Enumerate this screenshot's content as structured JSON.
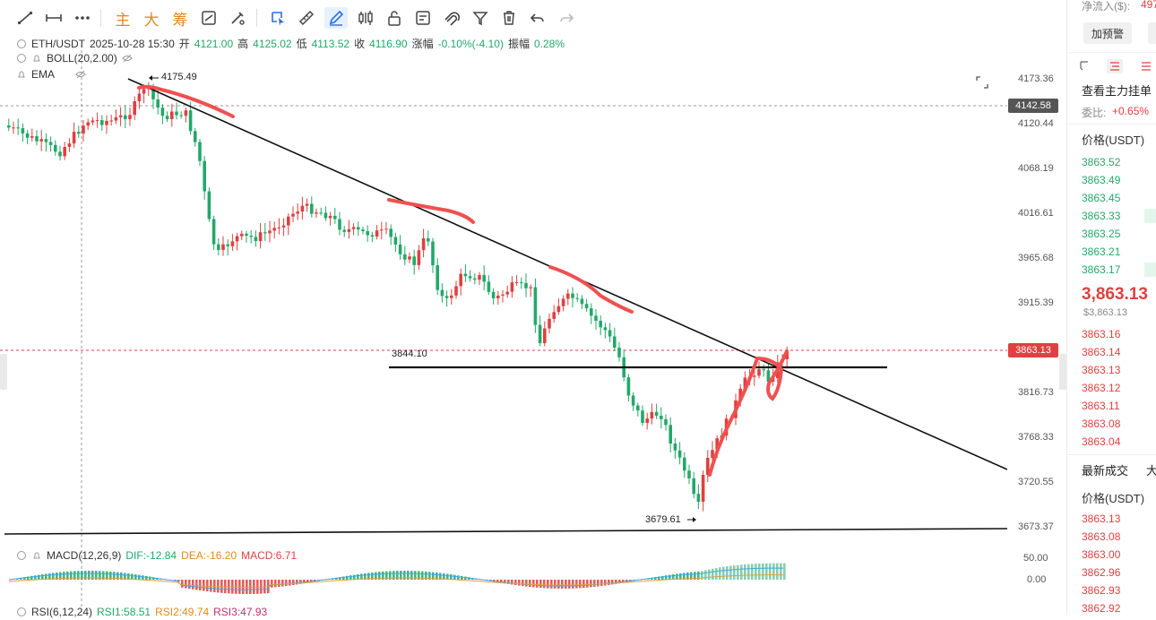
{
  "toolbar": {
    "tools": [
      {
        "name": "trendline-tool-icon"
      },
      {
        "name": "horizontal-ray-tool-icon"
      },
      {
        "name": "more-tools-icon"
      }
    ],
    "text_buttons": [
      "主",
      "大",
      "筹"
    ],
    "right_tools": [
      {
        "name": "fib-tool-icon"
      },
      {
        "name": "brush-tool-icon"
      },
      {
        "name": "select-tool-icon"
      },
      {
        "name": "ruler-tool-icon"
      },
      {
        "name": "pen-tool-icon"
      },
      {
        "name": "candle-tool-icon"
      },
      {
        "name": "lock-icon"
      },
      {
        "name": "text-tool-icon"
      },
      {
        "name": "magnet-icon"
      },
      {
        "name": "filter-icon"
      },
      {
        "name": "trash-icon"
      },
      {
        "name": "undo-icon"
      },
      {
        "name": "redo-icon"
      }
    ]
  },
  "info": {
    "symbol": "ETH/USDT",
    "datetime": "2025-10-28 15:30",
    "open_label": "开",
    "open": "4121.00",
    "high_label": "高",
    "high": "4125.02",
    "low_label": "低",
    "low": "4113.52",
    "close_label": "收",
    "close": "4116.90",
    "change_label": "涨幅",
    "change": "-0.10%(-4.10)",
    "amp_label": "振幅",
    "amp": "0.28%",
    "boll": "BOLL(20,2.00)",
    "ema": "EMA"
  },
  "macd": {
    "label": "MACD(12,26,9)",
    "dif": "DIF:-12.84",
    "dea": "DEA:-16.20",
    "macd": "MACD:6.71",
    "axis": [
      "50.00",
      "0.00"
    ]
  },
  "rsi": {
    "label": "RSI(6,12,24)",
    "rsi1": "RSI1:58.51",
    "rsi2": "RSI2:49.74",
    "rsi3": "RSI3:47.93"
  },
  "price_axis": {
    "ticks": [
      "4173.36",
      "4120.44",
      "4068.19",
      "4016.61",
      "3965.68",
      "3915.39",
      "3816.73",
      "3768.33",
      "3720.55",
      "3673.37"
    ],
    "tag_high": "4142.58",
    "tag_current": "3863.13"
  },
  "annotations": {
    "high_point": "4175.49",
    "support": "3844.10",
    "low_point": "3679.61"
  },
  "right_panel": {
    "net_inflow_label": "净流入($):",
    "net_inflow_value": "497",
    "alert_button": "加预警",
    "main_orders": "查看主力挂单",
    "ratio_label": "委比:",
    "ratio_value": "+0.65%",
    "price_header": "价格(USDT)",
    "asks": [
      "3863.52",
      "3863.49",
      "3863.45",
      "3863.33",
      "3863.25",
      "3863.21",
      "3863.17"
    ],
    "last_price": "3,863.13",
    "last_price_usd": "$3,863.13",
    "bids": [
      "3863.16",
      "3863.14",
      "3863.13",
      "3863.12",
      "3863.11",
      "3863.08",
      "3863.04"
    ],
    "trades_title": "最新成交",
    "trades_title2": "大",
    "trades_header": "价格(USDT)",
    "trades": [
      "3863.13",
      "3863.08",
      "3863.00",
      "3862.96",
      "3862.93",
      "3862.92"
    ]
  },
  "colors": {
    "up": "#e04040",
    "down": "#23a86a",
    "annot": "#f05050"
  }
}
